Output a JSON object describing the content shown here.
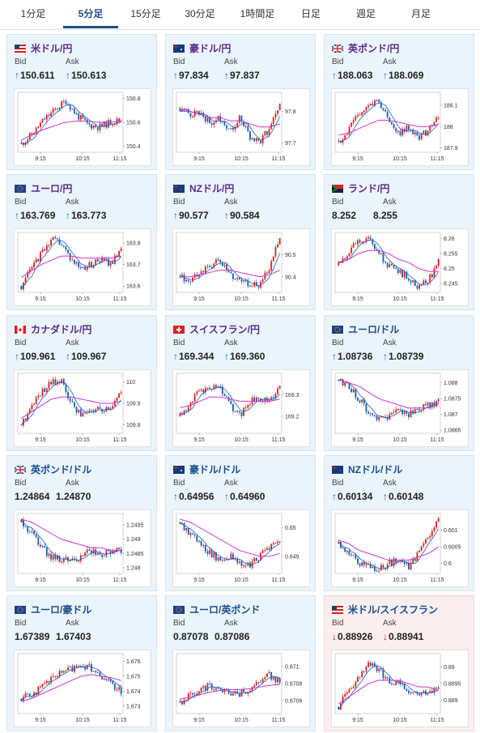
{
  "tabs": [
    {
      "label": "1分足",
      "active": false
    },
    {
      "label": "5分足",
      "active": true
    },
    {
      "label": "15分足",
      "active": false
    },
    {
      "label": "30分足",
      "active": false
    },
    {
      "label": "1時間足",
      "active": false
    },
    {
      "label": "日足",
      "active": false
    },
    {
      "label": "週足",
      "active": false
    },
    {
      "label": "月足",
      "active": false
    }
  ],
  "labels": {
    "bid": "Bid",
    "ask": "Ask"
  },
  "x_ticks": [
    "9:15",
    "10:15",
    "11:15"
  ],
  "colors": {
    "candle_up": "#e02020",
    "candle_down": "#1a5fb4",
    "ma_long": "#cc33cc",
    "ma_short": "#1a5fb4",
    "up_arrow": "#1a66cc",
    "down_arrow": "#cc2222"
  },
  "cards": [
    {
      "pair": "米ドル/円",
      "flag": "us-flag-icon",
      "bid": "150.611",
      "ask": "150.613",
      "dir": "up",
      "chart_data": {
        "type": "candlestick",
        "y_ticks": [
          "150.8",
          "150.6",
          "150.4"
        ],
        "ylim": [
          150.35,
          150.85
        ],
        "trend": [
          150.42,
          150.5,
          150.62,
          150.7,
          150.78,
          150.66,
          150.58,
          150.56,
          150.6,
          150.62
        ],
        "ma_long": [
          150.45,
          150.5,
          150.54,
          150.57,
          150.6,
          150.61,
          150.61,
          150.6,
          150.6,
          150.61
        ]
      }
    },
    {
      "pair": "豪ドル/円",
      "flag": "au-flag-icon",
      "bid": "97.834",
      "ask": "97.837",
      "dir": "up",
      "chart_data": {
        "type": "candlestick",
        "y_ticks": [
          "97.8",
          "97.7"
        ],
        "ylim": [
          97.67,
          97.86
        ],
        "trend": [
          97.81,
          97.79,
          97.8,
          97.76,
          97.78,
          97.74,
          97.78,
          97.72,
          97.7,
          97.75,
          97.82
        ],
        "ma_long": [
          97.8,
          97.8,
          97.79,
          97.78,
          97.78,
          97.77,
          97.77,
          97.76,
          97.75,
          97.75,
          97.76
        ]
      }
    },
    {
      "pair": "英ポンド/円",
      "flag": "gb-flag-icon",
      "bid": "188.063",
      "ask": "188.069",
      "dir": "up",
      "chart_data": {
        "type": "candlestick",
        "y_ticks": [
          "188.1",
          "188",
          "187.9"
        ],
        "ylim": [
          187.88,
          188.16
        ],
        "trend": [
          187.93,
          187.98,
          188.06,
          188.1,
          188.13,
          188.02,
          187.97,
          188.0,
          187.95,
          187.98,
          188.06
        ],
        "ma_long": [
          187.96,
          187.97,
          187.99,
          188.01,
          188.03,
          188.03,
          188.02,
          188.01,
          188.0,
          188.0,
          188.01
        ]
      }
    },
    {
      "pair": "ユーロ/円",
      "flag": "eu-flag-icon",
      "bid": "163.769",
      "ask": "163.773",
      "dir": "up",
      "chart_data": {
        "type": "candlestick",
        "y_ticks": [
          "163.8",
          "163.7",
          "163.6"
        ],
        "ylim": [
          163.57,
          163.85
        ],
        "trend": [
          163.6,
          163.68,
          163.75,
          163.82,
          163.8,
          163.72,
          163.68,
          163.7,
          163.72,
          163.7,
          163.78
        ],
        "ma_long": [
          163.64,
          163.67,
          163.7,
          163.72,
          163.74,
          163.74,
          163.73,
          163.73,
          163.73,
          163.73,
          163.74
        ]
      }
    },
    {
      "pair": "NZドル/円",
      "flag": "nz-flag-icon",
      "bid": "90.577",
      "ask": "90.584",
      "dir": "up",
      "chart_data": {
        "type": "candlestick",
        "y_ticks": [
          "90.5",
          "90.4"
        ],
        "ylim": [
          90.33,
          90.6
        ],
        "trend": [
          90.4,
          90.38,
          90.42,
          90.45,
          90.47,
          90.41,
          90.39,
          90.37,
          90.36,
          90.45,
          90.57
        ],
        "ma_long": [
          90.4,
          90.4,
          90.41,
          90.42,
          90.43,
          90.43,
          90.42,
          90.41,
          90.4,
          90.41,
          90.43
        ]
      }
    },
    {
      "pair": "ランド/円",
      "flag": "za-flag-icon",
      "bid": "8.252",
      "ask": "8.255",
      "dir": "none",
      "chart_data": {
        "type": "candlestick",
        "y_ticks": [
          "8.26",
          "8.255",
          "8.25",
          "8.245"
        ],
        "ylim": [
          8.242,
          8.262
        ],
        "trend": [
          8.251,
          8.256,
          8.259,
          8.261,
          8.255,
          8.251,
          8.249,
          8.247,
          8.244,
          8.246,
          8.252
        ],
        "ma_long": [
          8.252,
          8.253,
          8.255,
          8.256,
          8.256,
          8.255,
          8.253,
          8.252,
          8.25,
          8.249,
          8.249
        ]
      }
    },
    {
      "pair": "カナダドル/円",
      "flag": "ca-flag-icon",
      "bid": "109.961",
      "ask": "109.967",
      "dir": "up",
      "chart_data": {
        "type": "candlestick",
        "y_ticks": [
          "110",
          "109.9",
          "109.8"
        ],
        "ylim": [
          109.76,
          110.04
        ],
        "trend": [
          109.8,
          109.88,
          109.95,
          110.0,
          110.01,
          109.9,
          109.85,
          109.88,
          109.86,
          109.88,
          109.96
        ],
        "ma_long": [
          109.83,
          109.86,
          109.89,
          109.92,
          109.93,
          109.93,
          109.92,
          109.91,
          109.9,
          109.9,
          109.91
        ]
      }
    },
    {
      "pair": "スイスフラン/円",
      "flag": "ch-flag-icon",
      "bid": "169.344",
      "ask": "169.360",
      "dir": "up",
      "chart_data": {
        "type": "candlestick",
        "y_ticks": [
          "169.3",
          "169.2"
        ],
        "ylim": [
          169.12,
          169.4
        ],
        "trend": [
          169.2,
          169.26,
          169.32,
          169.34,
          169.33,
          169.25,
          169.2,
          169.27,
          169.28,
          169.27,
          169.34
        ],
        "ma_long": [
          169.24,
          169.25,
          169.27,
          169.29,
          169.29,
          169.28,
          169.27,
          169.27,
          169.27,
          169.27,
          169.28
        ]
      }
    },
    {
      "pair": "ユーロ/ドル",
      "flag": "eu-flag-icon",
      "bid": "1.08736",
      "ask": "1.08739",
      "dir": "up",
      "chart_data": {
        "type": "candlestick",
        "y_ticks": [
          "1.088",
          "1.0875",
          "1.087",
          "1.0865"
        ],
        "ylim": [
          1.0864,
          1.0883
        ],
        "trend": [
          1.0881,
          1.0879,
          1.0875,
          1.0871,
          1.0868,
          1.0869,
          1.0871,
          1.087,
          1.0872,
          1.0873,
          1.0874
        ],
        "ma_long": [
          1.0881,
          1.088,
          1.0879,
          1.0877,
          1.0875,
          1.0874,
          1.0873,
          1.0872,
          1.0872,
          1.0872,
          1.0873
        ]
      }
    },
    {
      "pair": "英ポンド/ドル",
      "flag": "gb-flag-icon",
      "bid": "1.24864",
      "ask": "1.24870",
      "dir": "none",
      "chart_data": {
        "type": "candlestick",
        "y_ticks": [
          "1.2495",
          "1.249",
          "1.2485",
          "1.248"
        ],
        "ylim": [
          1.2478,
          1.2499
        ],
        "trend": [
          1.2496,
          1.2492,
          1.2487,
          1.2484,
          1.2483,
          1.2482,
          1.2484,
          1.2486,
          1.2485,
          1.2486,
          1.2486
        ],
        "ma_long": [
          1.2497,
          1.2496,
          1.2494,
          1.2492,
          1.249,
          1.2489,
          1.2488,
          1.2487,
          1.2487,
          1.2486,
          1.2486
        ]
      }
    },
    {
      "pair": "豪ドル/ドル",
      "flag": "au-flag-icon",
      "bid": "0.64956",
      "ask": "0.64960",
      "dir": "up",
      "chart_data": {
        "type": "candlestick",
        "y_ticks": [
          "0.65",
          "0.649"
        ],
        "ylim": [
          0.6484,
          0.6505
        ],
        "trend": [
          0.6502,
          0.6498,
          0.6494,
          0.6491,
          0.6489,
          0.649,
          0.6488,
          0.6487,
          0.649,
          0.6493,
          0.6495
        ],
        "ma_long": [
          0.6503,
          0.6502,
          0.65,
          0.6498,
          0.6496,
          0.6494,
          0.6492,
          0.6491,
          0.649,
          0.649,
          0.6491
        ]
      }
    },
    {
      "pair": "NZドル/ドル",
      "flag": "nz-flag-icon",
      "bid": "0.60134",
      "ask": "0.60148",
      "dir": "up",
      "chart_data": {
        "type": "candlestick",
        "y_ticks": [
          "0.601",
          "0.6005",
          "0.6"
        ],
        "ylim": [
          0.5997,
          0.6015
        ],
        "trend": [
          0.6006,
          0.6003,
          0.6,
          0.5999,
          0.5998,
          0.6,
          0.6001,
          0.5999,
          0.6003,
          0.6008,
          0.6013
        ],
        "ma_long": [
          0.6007,
          0.6006,
          0.6004,
          0.6003,
          0.6002,
          0.6001,
          0.6001,
          0.6001,
          0.6002,
          0.6003,
          0.6005
        ]
      }
    },
    {
      "pair": "ユーロ/豪ドル",
      "flag": "eu-flag-icon",
      "bid": "1.67389",
      "ask": "1.67403",
      "dir": "none",
      "chart_data": {
        "type": "candlestick",
        "y_ticks": [
          "1.676",
          "1.675",
          "1.674",
          "1.673"
        ],
        "ylim": [
          1.6725,
          1.6765
        ],
        "trend": [
          1.6735,
          1.6738,
          1.6742,
          1.6748,
          1.6752,
          1.6755,
          1.6758,
          1.6755,
          1.6748,
          1.6745,
          1.674
        ],
        "ma_long": [
          1.6733,
          1.6735,
          1.6738,
          1.6741,
          1.6744,
          1.6747,
          1.675,
          1.6751,
          1.675,
          1.6749,
          1.6747
        ]
      }
    },
    {
      "pair": "ユーロ/英ポンド",
      "flag": "eu-flag-icon",
      "bid": "0.87078",
      "ask": "0.87086",
      "dir": "none",
      "chart_data": {
        "type": "candlestick",
        "y_ticks": [
          "0.871",
          "0.8708",
          "0.8706"
        ],
        "ylim": [
          0.87045,
          0.87115
        ],
        "trend": [
          0.87058,
          0.87066,
          0.87074,
          0.87078,
          0.87072,
          0.8707,
          0.87068,
          0.87075,
          0.87082,
          0.8709,
          0.87082
        ],
        "ma_long": [
          0.87062,
          0.87064,
          0.87067,
          0.8707,
          0.87072,
          0.87073,
          0.87073,
          0.87074,
          0.87076,
          0.87078,
          0.87079
        ]
      }
    },
    {
      "pair": "米ドル/スイスフラン",
      "flag": "us-flag-icon",
      "bid": "0.88926",
      "ask": "0.88941",
      "dir": "down",
      "chart_data": {
        "type": "candlestick",
        "y_ticks": [
          "0.89",
          "0.8895",
          "0.889"
        ],
        "ylim": [
          0.8886,
          0.8904
        ],
        "trend": [
          0.8888,
          0.8893,
          0.8897,
          0.8901,
          0.8899,
          0.8896,
          0.8895,
          0.8893,
          0.8892,
          0.8893,
          0.8893
        ],
        "ma_long": [
          0.8889,
          0.8891,
          0.8893,
          0.8895,
          0.8896,
          0.8896,
          0.8896,
          0.8895,
          0.8894,
          0.8894,
          0.8893
        ]
      }
    }
  ]
}
